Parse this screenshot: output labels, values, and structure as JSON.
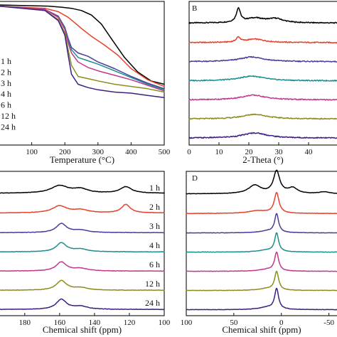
{
  "colors": [
    "#000000",
    "#e8412b",
    "#4a3c9b",
    "#1b8f8f",
    "#c0388f",
    "#8c8c1e",
    "#3d1f82"
  ],
  "chart_data": [
    {
      "id": "A",
      "type": "line",
      "panel_label": "",
      "xlabel": "Temperature (°C)",
      "ylabel": "",
      "xlim": [
        0,
        500
      ],
      "xticks": [
        "100",
        "200",
        "300",
        "400",
        "500"
      ],
      "ylim": [
        0,
        100
      ],
      "legend": [
        "1 h",
        "2 h",
        "3 h",
        "4 h",
        "6 h",
        "12 h",
        "24 h"
      ],
      "series": [
        {
          "name": "1 h",
          "x": [
            0,
            150,
            190,
            220,
            250,
            280,
            310,
            340,
            380,
            420,
            460,
            500
          ],
          "y": [
            100,
            99,
            98,
            97,
            95,
            91,
            83,
            70,
            53,
            40,
            32,
            29
          ]
        },
        {
          "name": "2 h",
          "x": [
            0,
            140,
            180,
            210,
            230,
            250,
            280,
            320,
            360,
            400,
            450,
            500
          ],
          "y": [
            99,
            97,
            94,
            89,
            84,
            79,
            72,
            64,
            55,
            43,
            33,
            27
          ]
        },
        {
          "name": "3 h",
          "x": [
            0,
            140,
            180,
            200,
            210,
            220,
            240,
            270,
            300,
            350,
            400,
            450,
            500
          ],
          "y": [
            99,
            96,
            90,
            80,
            70,
            62,
            57,
            54,
            49,
            43,
            36,
            30,
            25
          ]
        },
        {
          "name": "4 h",
          "x": [
            0,
            140,
            180,
            200,
            210,
            220,
            240,
            270,
            300,
            350,
            400,
            450,
            500
          ],
          "y": [
            99,
            96,
            89,
            79,
            68,
            60,
            53,
            50,
            47,
            41,
            35,
            29,
            24
          ]
        },
        {
          "name": "6 h",
          "x": [
            0,
            140,
            180,
            200,
            210,
            220,
            240,
            270,
            300,
            350,
            400,
            450,
            500
          ],
          "y": [
            99,
            96,
            89,
            78,
            66,
            57,
            49,
            44,
            41,
            37,
            33,
            28,
            23
          ]
        },
        {
          "name": "12 h",
          "x": [
            0,
            140,
            180,
            200,
            210,
            220,
            240,
            270,
            300,
            350,
            400,
            450,
            500
          ],
          "y": [
            99,
            95,
            87,
            75,
            60,
            46,
            36,
            34,
            32,
            29,
            27,
            25,
            22
          ]
        },
        {
          "name": "24 h",
          "x": [
            0,
            140,
            180,
            200,
            210,
            220,
            240,
            270,
            300,
            350,
            400,
            450,
            500
          ],
          "y": [
            99,
            95,
            86,
            73,
            55,
            38,
            29,
            26,
            24,
            22,
            21,
            19,
            17
          ]
        }
      ]
    },
    {
      "id": "B",
      "type": "line",
      "panel_label": "B",
      "xlabel": "2-Theta (°)",
      "ylabel": "",
      "xlim": [
        0,
        50
      ],
      "xticks": [
        "0",
        "10",
        "20",
        "30",
        "40"
      ],
      "series": [
        {
          "name": "1 h",
          "offset": 6,
          "peaks": [
            [
              16.5,
              1.6,
              0.8
            ],
            [
              22,
              0.55,
              4
            ],
            [
              29,
              0.45,
              3
            ]
          ],
          "base": 0.2
        },
        {
          "name": "2 h",
          "offset": 5,
          "peaks": [
            [
              16.5,
              0.55,
              0.8
            ],
            [
              22,
              0.4,
              4
            ]
          ],
          "base": 0.15
        },
        {
          "name": "3 h",
          "offset": 4,
          "peaks": [
            [
              21,
              0.55,
              5
            ]
          ],
          "base": 0.15
        },
        {
          "name": "4 h",
          "offset": 3,
          "peaks": [
            [
              21,
              0.55,
              5
            ]
          ],
          "base": 0.15
        },
        {
          "name": "6 h",
          "offset": 2,
          "peaks": [
            [
              21.5,
              0.55,
              5
            ]
          ],
          "base": 0.15
        },
        {
          "name": "12 h",
          "offset": 1,
          "peaks": [
            [
              22,
              0.55,
              5
            ]
          ],
          "base": 0.15
        },
        {
          "name": "24 h",
          "offset": 0,
          "peaks": [
            [
              22,
              0.6,
              5
            ]
          ],
          "base": 0.15
        }
      ]
    },
    {
      "id": "C",
      "type": "line",
      "panel_label": "",
      "xlabel": "Chemical shift (ppm)",
      "ylabel": "",
      "xlim": [
        195,
        100
      ],
      "xticks": [
        "180",
        "160",
        "140",
        "120",
        "100"
      ],
      "legend": [
        "1 h",
        "2 h",
        "3 h",
        "4 h",
        "6 h",
        "12 h",
        "24 h"
      ],
      "series": [
        {
          "name": "1 h",
          "offset": 6,
          "peaks": [
            [
              160,
              0.75,
              6
            ],
            [
              148,
              0.4,
              5
            ],
            [
              122,
              0.65,
              4
            ]
          ],
          "base": 0.15
        },
        {
          "name": "2 h",
          "offset": 5,
          "peaks": [
            [
              160,
              0.7,
              5
            ],
            [
              148,
              0.3,
              5
            ],
            [
              122,
              0.85,
              3
            ]
          ],
          "base": 0.1
        },
        {
          "name": "3 h",
          "offset": 4,
          "peaks": [
            [
              159,
              0.9,
              3.5
            ],
            [
              148,
              0.25,
              5
            ]
          ],
          "base": 0.05
        },
        {
          "name": "4 h",
          "offset": 3,
          "peaks": [
            [
              159,
              0.9,
              3.5
            ],
            [
              148,
              0.25,
              5
            ]
          ],
          "base": 0.05
        },
        {
          "name": "6 h",
          "offset": 2,
          "peaks": [
            [
              159,
              0.9,
              3.5
            ],
            [
              148,
              0.25,
              5
            ]
          ],
          "base": 0.05
        },
        {
          "name": "12 h",
          "offset": 1,
          "peaks": [
            [
              159,
              0.95,
              3.5
            ],
            [
              148,
              0.25,
              5
            ]
          ],
          "base": 0.05
        },
        {
          "name": "24 h",
          "offset": 0,
          "peaks": [
            [
              159,
              1.0,
              3.5
            ],
            [
              148,
              0.3,
              5
            ]
          ],
          "base": 0.05
        }
      ]
    },
    {
      "id": "D",
      "type": "line",
      "panel_label": "D",
      "xlabel": "Chemical shift (ppm)",
      "ylabel": "",
      "xlim": [
        100,
        -60
      ],
      "xticks": [
        "100",
        "50",
        "0",
        "-50"
      ],
      "series": [
        {
          "name": "1 h",
          "offset": 6,
          "peaks": [
            [
              5,
              2.4,
              4
            ],
            [
              28,
              0.9,
              8
            ],
            [
              -12,
              0.6,
              6
            ],
            [
              -45,
              0.2,
              6
            ]
          ],
          "base": 0.1
        },
        {
          "name": "2 h",
          "offset": 5,
          "peaks": [
            [
              5,
              2.2,
              3
            ],
            [
              25,
              0.3,
              12
            ]
          ],
          "base": 0.05
        },
        {
          "name": "3 h",
          "offset": 4,
          "peaks": [
            [
              5,
              2.0,
              2.5
            ],
            [
              15,
              0.2,
              10
            ]
          ],
          "base": 0.03
        },
        {
          "name": "4 h",
          "offset": 3,
          "peaks": [
            [
              5,
              2.0,
              2.5
            ],
            [
              15,
              0.2,
              10
            ]
          ],
          "base": 0.03
        },
        {
          "name": "6 h",
          "offset": 2,
          "peaks": [
            [
              5,
              2.0,
              2.5
            ],
            [
              15,
              0.2,
              10
            ]
          ],
          "base": 0.03
        },
        {
          "name": "12 h",
          "offset": 1,
          "peaks": [
            [
              5,
              2.0,
              2.5
            ],
            [
              15,
              0.2,
              10
            ]
          ],
          "base": 0.03
        },
        {
          "name": "24 h",
          "offset": 0,
          "peaks": [
            [
              5,
              2.2,
              2.5
            ],
            [
              15,
              0.25,
              10
            ]
          ],
          "base": 0.03
        }
      ]
    }
  ]
}
